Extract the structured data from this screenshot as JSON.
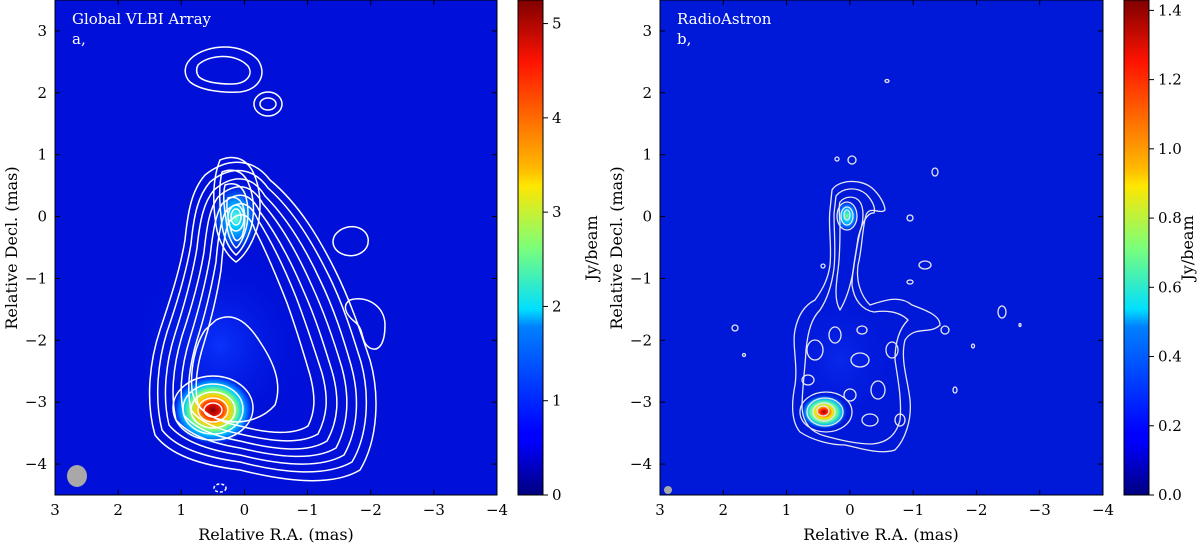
{
  "panels": [
    {
      "id": "a",
      "title": "Global VLBI Array",
      "label": "a,",
      "xlabel": "Relative R.A. (mas)",
      "ylabel": "Relative Decl. (mas)",
      "colorbar_label": "Jy/beam",
      "colorbar_ticks": [
        "0",
        "1",
        "2",
        "3",
        "4",
        "5"
      ]
    },
    {
      "id": "b",
      "title": "RadioAstron",
      "label": "b,",
      "xlabel": "Relative R.A. (mas)",
      "ylabel": "Relative Decl. (mas)",
      "colorbar_label": "Jy/beam",
      "colorbar_ticks": [
        "0.0",
        "0.2",
        "0.4",
        "0.6",
        "0.8",
        "1.0",
        "1.2",
        "1.4"
      ]
    }
  ],
  "chart_data": [
    {
      "type": "heatmap",
      "title": "Global VLBI Array",
      "xlabel": "Relative R.A. (mas)",
      "ylabel": "Relative Decl. (mas)",
      "xlim": [
        3,
        -4
      ],
      "ylim": [
        -4.5,
        3.5
      ],
      "x_ticks": [
        3,
        2,
        1,
        0,
        -1,
        -2,
        -3,
        -4
      ],
      "y_ticks": [
        3,
        2,
        1,
        0,
        -1,
        -2,
        -3,
        -4
      ],
      "x_tick_labels": [
        "3",
        "2",
        "1",
        "0",
        "−1",
        "−2",
        "−3",
        "−4"
      ],
      "y_tick_labels": [
        "3",
        "2",
        "1",
        "0",
        "−1",
        "−2",
        "−3",
        "−4"
      ],
      "colorbar": {
        "label": "Jy/beam",
        "range": [
          0,
          5.25
        ],
        "ticks": [
          0,
          1,
          2,
          3,
          4,
          5
        ],
        "colormap": "jet"
      },
      "components": [
        {
          "name": "core",
          "x": 0.0,
          "y": 0.0,
          "peak": 2.6,
          "sx": 0.14,
          "sy": 0.22
        },
        {
          "name": "peak",
          "x": 0.47,
          "y": -3.12,
          "peak": 5.2,
          "sx": 0.2,
          "sy": 0.17
        },
        {
          "name": "jet",
          "x": 0.3,
          "y": -2.6,
          "peak": 0.5,
          "sx": 0.45,
          "sy": 0.5
        }
      ],
      "beam": {
        "x": 2.7,
        "y": -4.15,
        "major": 0.33,
        "minor": 0.27
      },
      "contour_color": "#ffffff"
    },
    {
      "type": "heatmap",
      "title": "RadioAstron",
      "xlabel": "Relative R.A. (mas)",
      "ylabel": "Relative Decl. (mas)",
      "xlim": [
        3,
        -4
      ],
      "ylim": [
        -4.5,
        3.5
      ],
      "x_ticks": [
        3,
        2,
        1,
        0,
        -1,
        -2,
        -3,
        -4
      ],
      "y_ticks": [
        3,
        2,
        1,
        0,
        -1,
        -2,
        -3,
        -4
      ],
      "x_tick_labels": [
        "3",
        "2",
        "1",
        "0",
        "−1",
        "−2",
        "−3",
        "−4"
      ],
      "y_tick_labels": [
        "3",
        "2",
        "1",
        "0",
        "−1",
        "−2",
        "−3",
        "−4"
      ],
      "colorbar": {
        "label": "Jy/beam",
        "range": [
          0,
          1.43
        ],
        "ticks": [
          0,
          0.2,
          0.4,
          0.6,
          0.8,
          1.0,
          1.2,
          1.4
        ],
        "colormap": "jet"
      },
      "components": [
        {
          "name": "core",
          "x": 0.0,
          "y": 0.0,
          "peak": 0.85,
          "sx": 0.08,
          "sy": 0.12
        },
        {
          "name": "peak",
          "x": 0.35,
          "y": -3.15,
          "peak": 1.4,
          "sx": 0.1,
          "sy": 0.08
        }
      ],
      "beam": {
        "x": 2.9,
        "y": -4.35,
        "major": 0.1,
        "minor": 0.1
      },
      "contour_color": "#e8e8f0"
    }
  ]
}
